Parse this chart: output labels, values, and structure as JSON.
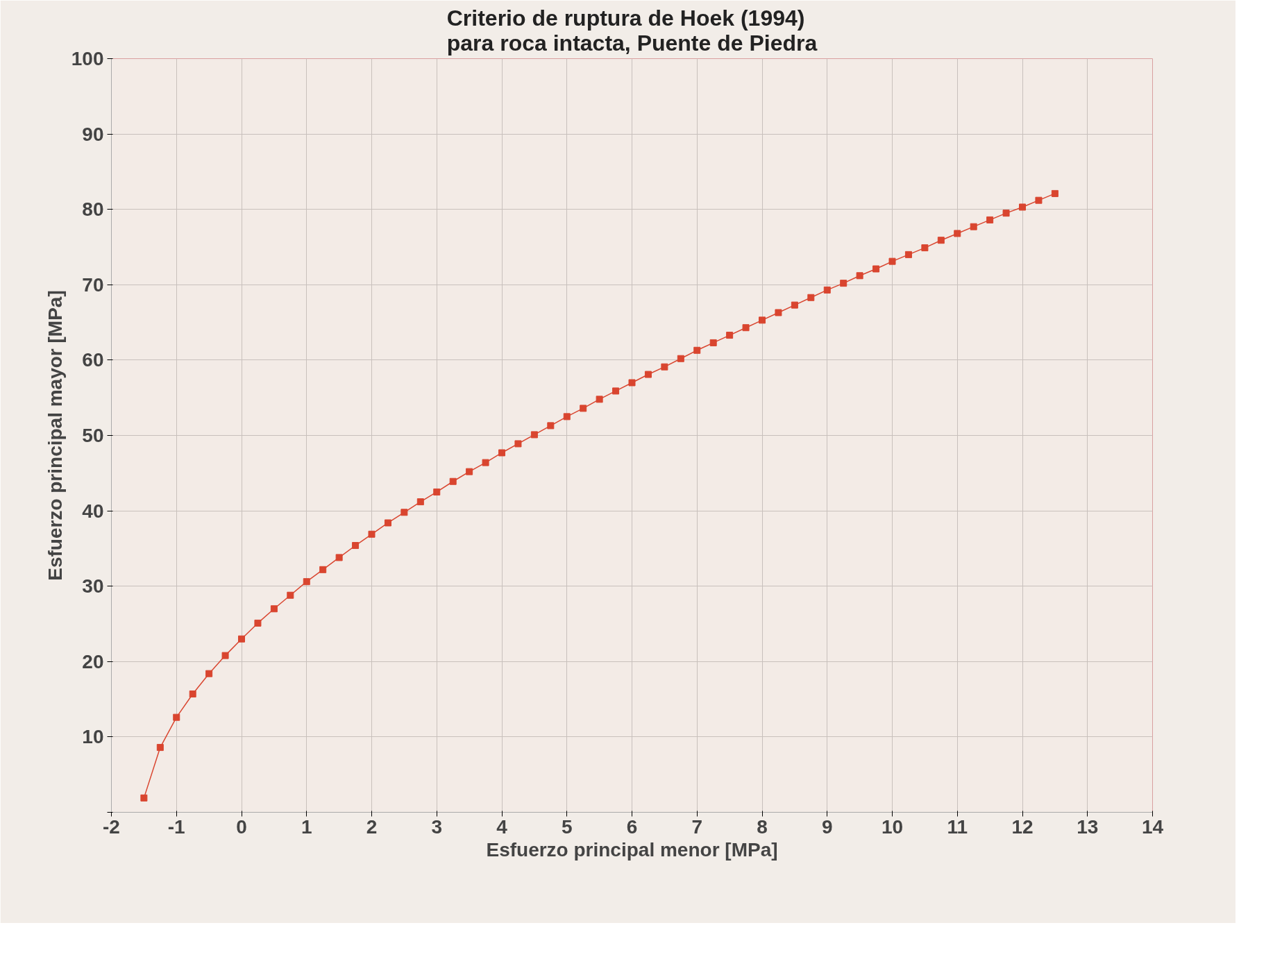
{
  "chart_data": {
    "type": "line",
    "title": "Criterio de ruptura de Hoek (1994)\npara roca intacta, Puente de Piedra",
    "xlabel": "Esfuerzo principal menor [MPa]",
    "ylabel": "Esfuerzo principal mayor [MPa]",
    "x": [
      -1.5,
      -1.25,
      -1.0,
      -0.75,
      -0.5,
      -0.25,
      0,
      0.25,
      0.5,
      0.75,
      1,
      1.25,
      1.5,
      1.75,
      2,
      2.25,
      2.5,
      2.75,
      3,
      3.25,
      3.5,
      3.75,
      4,
      4.25,
      4.5,
      4.75,
      5,
      5.25,
      5.5,
      5.75,
      6,
      6.25,
      6.5,
      6.75,
      7,
      7.25,
      7.5,
      7.75,
      8,
      8.25,
      8.5,
      8.75,
      9,
      9.25,
      9.5,
      9.75,
      10,
      10.25,
      10.5,
      10.75,
      11,
      11.25,
      11.5,
      11.75,
      12,
      12.25,
      12.5
    ],
    "series": [
      {
        "color": "#d9452f",
        "values": [
          1.9,
          8.6,
          12.6,
          15.7,
          18.4,
          20.8,
          23.0,
          25.1,
          27.0,
          28.8,
          30.6,
          32.2,
          33.8,
          35.4,
          36.9,
          38.4,
          39.8,
          41.2,
          42.5,
          43.9,
          45.2,
          46.4,
          47.7,
          48.9,
          50.1,
          51.3,
          52.5,
          53.6,
          54.8,
          55.9,
          57.0,
          58.1,
          59.1,
          60.2,
          61.3,
          62.3,
          63.3,
          64.3,
          65.3,
          66.3,
          67.3,
          68.3,
          69.3,
          70.2,
          71.2,
          72.1,
          73.1,
          74.0,
          74.9,
          75.9,
          76.8,
          77.7,
          78.6,
          79.5,
          80.3,
          81.2,
          82.1
        ]
      }
    ],
    "xlim": [
      -2,
      14
    ],
    "xticks": [
      -2,
      -1,
      0,
      1,
      2,
      3,
      4,
      5,
      6,
      7,
      8,
      9,
      10,
      11,
      12,
      13,
      14
    ],
    "ylim": [
      0,
      100
    ],
    "yticks": [
      {
        "value": 0,
        "label": null
      },
      10,
      20,
      30,
      40,
      50,
      60,
      70,
      80,
      90,
      100
    ],
    "grid": true,
    "marker": "square",
    "line_style": "solid"
  }
}
